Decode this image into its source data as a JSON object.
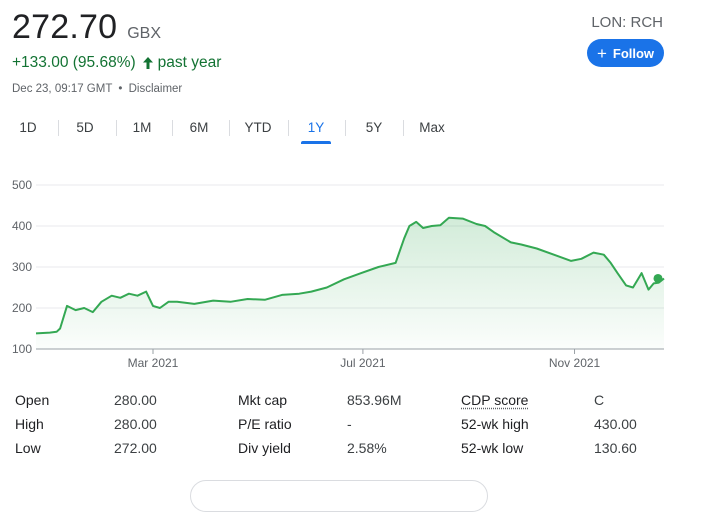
{
  "quote": {
    "price": "272.70",
    "currency": "GBX",
    "change": "+133.00 (95.68%)",
    "period": "past year",
    "timestamp": "Dec 23, 09:17 GMT",
    "separator": "•",
    "disclaimer": "Disclaimer",
    "ticker": "LON: RCH",
    "follow_label": "Follow",
    "up_color": "#137333",
    "accent_color": "#1a73e8"
  },
  "tabs": {
    "items": [
      "1D",
      "5D",
      "1M",
      "6M",
      "YTD",
      "1Y",
      "5Y",
      "Max"
    ],
    "active": "1Y"
  },
  "chart_data": {
    "type": "area",
    "y_ticks": [
      100,
      200,
      300,
      400,
      500
    ],
    "x_ticks": [
      "Mar 2021",
      "Jul 2021",
      "Nov 2021"
    ],
    "ylim": [
      100,
      500
    ],
    "grid": true,
    "line_color": "#34a853",
    "series": [
      {
        "x": [
          "2020-12-23",
          "2020-12-31",
          "2021-01-04",
          "2021-01-06",
          "2021-01-10",
          "2021-01-15",
          "2021-01-20",
          "2021-01-25",
          "2021-01-30",
          "2021-02-05",
          "2021-02-10",
          "2021-02-15",
          "2021-02-20",
          "2021-02-25",
          "2021-03-01",
          "2021-03-05",
          "2021-03-10",
          "2021-03-15",
          "2021-03-25",
          "2021-04-05",
          "2021-04-15",
          "2021-04-25",
          "2021-05-05",
          "2021-05-15",
          "2021-05-25",
          "2021-06-01",
          "2021-06-10",
          "2021-06-20",
          "2021-06-30",
          "2021-07-10",
          "2021-07-20",
          "2021-07-25",
          "2021-07-28",
          "2021-08-01",
          "2021-08-05",
          "2021-08-10",
          "2021-08-15",
          "2021-08-20",
          "2021-08-28",
          "2021-09-05",
          "2021-09-10",
          "2021-09-15",
          "2021-09-25",
          "2021-10-01",
          "2021-10-10",
          "2021-10-20",
          "2021-10-30",
          "2021-11-05",
          "2021-11-12",
          "2021-11-18",
          "2021-11-22",
          "2021-11-26",
          "2021-12-01",
          "2021-12-05",
          "2021-12-10",
          "2021-12-14",
          "2021-12-17",
          "2021-12-20",
          "2021-12-23"
        ],
        "values": [
          138,
          140,
          142,
          150,
          205,
          195,
          200,
          190,
          215,
          230,
          225,
          235,
          230,
          240,
          205,
          200,
          215,
          215,
          210,
          218,
          215,
          222,
          220,
          232,
          235,
          240,
          250,
          270,
          285,
          300,
          310,
          370,
          400,
          410,
          395,
          400,
          402,
          420,
          418,
          405,
          400,
          385,
          360,
          355,
          345,
          330,
          315,
          320,
          335,
          330,
          310,
          285,
          255,
          250,
          285,
          245,
          260,
          262,
          272
        ]
      }
    ]
  },
  "stats": {
    "rows": [
      [
        {
          "label": "Open",
          "value": "280.00"
        },
        {
          "label": "Mkt cap",
          "value": "853.96M"
        },
        {
          "label": "CDP score",
          "value": "C"
        }
      ],
      [
        {
          "label": "High",
          "value": "280.00"
        },
        {
          "label": "P/E ratio",
          "value": "-"
        },
        {
          "label": "52-wk high",
          "value": "430.00"
        }
      ],
      [
        {
          "label": "Low",
          "value": "272.00"
        },
        {
          "label": "Div yield",
          "value": "2.58%"
        },
        {
          "label": "52-wk low",
          "value": "130.60"
        }
      ]
    ]
  }
}
